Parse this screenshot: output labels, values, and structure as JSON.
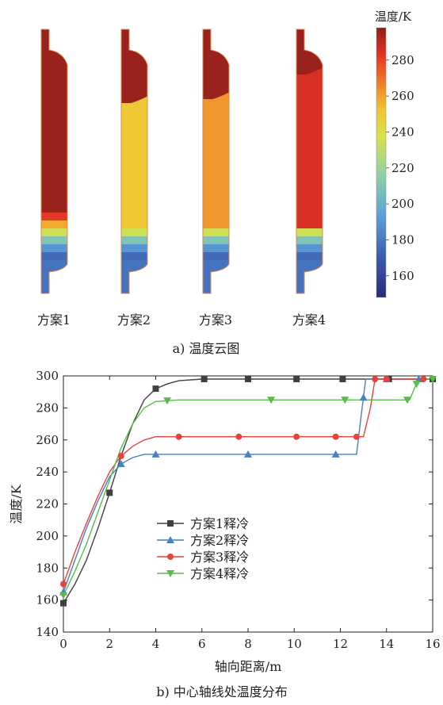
{
  "contour": {
    "colorbar_title": "温度/K",
    "colorbar_ticks": [
      160,
      180,
      200,
      220,
      240,
      260,
      280
    ],
    "colorbar_range": [
      148,
      298
    ],
    "cases": [
      {
        "label": "方案1",
        "top_temp": 296,
        "bottom_temp": 296
      },
      {
        "label": "方案2",
        "top_temp": 296,
        "bottom_temp": 251
      },
      {
        "label": "方案3",
        "top_temp": 296,
        "bottom_temp": 262
      },
      {
        "label": "方案4",
        "top_temp": 296,
        "bottom_temp": 285
      }
    ],
    "caption": "a) 温度云图"
  },
  "caption_b": "b) 中心轴线处温度分布",
  "chart_data": {
    "type": "line",
    "title": "",
    "xlabel": "轴向距离/m",
    "ylabel": "温度/K",
    "xlim": [
      0,
      16
    ],
    "ylim": [
      140,
      300
    ],
    "xticks": [
      0,
      2,
      4,
      6,
      8,
      10,
      12,
      14,
      16
    ],
    "yticks": [
      140,
      160,
      180,
      200,
      220,
      240,
      260,
      280,
      300
    ],
    "legend_position": "center-left",
    "series": [
      {
        "name": "方案1释冷",
        "color": "#404040",
        "marker": "square",
        "x": [
          0,
          0.5,
          1,
          1.5,
          2,
          2.5,
          3,
          3.5,
          4,
          4.5,
          5,
          6,
          8,
          10,
          12,
          13,
          14,
          15,
          16
        ],
        "y": [
          158,
          170,
          185,
          205,
          227,
          250,
          270,
          285,
          292,
          295,
          297,
          298,
          298,
          298,
          298,
          298,
          298,
          298,
          298
        ],
        "marker_x": [
          0,
          2,
          4,
          6.1,
          8,
          10.1,
          12.1,
          14.1,
          16
        ]
      },
      {
        "name": "方案2释冷",
        "color": "#4a7fc0",
        "marker": "triangle-up",
        "x": [
          0,
          0.5,
          1,
          1.5,
          2,
          2.5,
          3,
          3.5,
          4,
          5,
          6,
          8,
          10,
          12,
          12.7,
          12.9,
          13.1,
          13.6,
          14,
          15,
          16
        ],
        "y": [
          165,
          185,
          205,
          222,
          237,
          245,
          249,
          251,
          251,
          251,
          251,
          251,
          251,
          251,
          251,
          275,
          298,
          298,
          298,
          298,
          298
        ],
        "marker_x": [
          0,
          2.5,
          4,
          8,
          11.8,
          13,
          14,
          15.4
        ]
      },
      {
        "name": "方案3释冷",
        "color": "#e8423c",
        "marker": "circle",
        "x": [
          0,
          0.5,
          1,
          1.5,
          2,
          2.5,
          3,
          3.5,
          4,
          5,
          6,
          8,
          10,
          12,
          13,
          13.3,
          13.5,
          14,
          15,
          16
        ],
        "y": [
          170,
          190,
          208,
          225,
          240,
          250,
          256,
          260,
          262,
          262,
          262,
          262,
          262,
          262,
          262,
          280,
          298,
          298,
          298,
          298
        ],
        "marker_x": [
          0,
          2.5,
          5,
          7.6,
          10.1,
          11.8,
          12.7,
          13.5,
          14,
          15.6
        ]
      },
      {
        "name": "方案4释冷",
        "color": "#5cba4c",
        "marker": "triangle-down",
        "x": [
          0,
          0.5,
          1,
          1.5,
          2,
          2.5,
          3,
          3.5,
          4,
          5,
          6,
          8,
          10,
          12,
          14,
          15,
          15.2,
          15.4,
          16
        ],
        "y": [
          163,
          178,
          195,
          215,
          235,
          255,
          270,
          280,
          284,
          285,
          285,
          285,
          285,
          285,
          285,
          285,
          292,
          298,
          298
        ],
        "marker_x": [
          0,
          4.5,
          9,
          12.2,
          14.9,
          15.3,
          16
        ]
      }
    ]
  }
}
